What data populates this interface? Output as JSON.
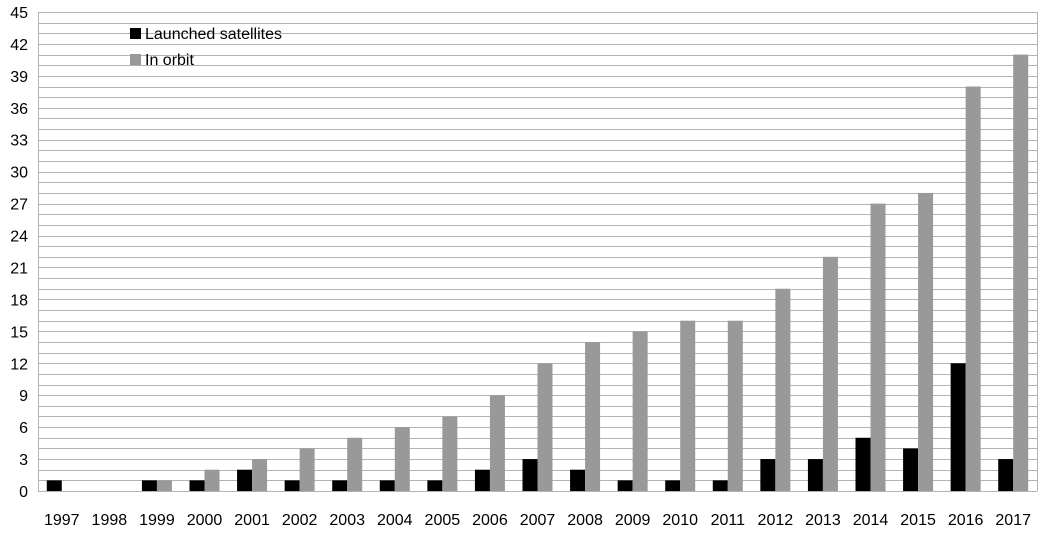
{
  "chart_data": {
    "type": "bar",
    "categories": [
      "1997",
      "1998",
      "1999",
      "2000",
      "2001",
      "2002",
      "2003",
      "2004",
      "2005",
      "2006",
      "2007",
      "2008",
      "2009",
      "2010",
      "2011",
      "2012",
      "2013",
      "2014",
      "2015",
      "2016",
      "2017"
    ],
    "series": [
      {
        "name": "Launched satellites",
        "color": "#000000",
        "values": [
          1,
          0,
          1,
          1,
          2,
          1,
          1,
          1,
          1,
          2,
          3,
          2,
          1,
          1,
          1,
          3,
          3,
          5,
          4,
          12,
          3
        ]
      },
      {
        "name": "In orbit",
        "color": "#999999",
        "values": [
          0,
          0,
          1,
          2,
          3,
          4,
          5,
          6,
          7,
          9,
          12,
          14,
          15,
          16,
          16,
          19,
          22,
          27,
          28,
          38,
          41
        ]
      }
    ],
    "yticks": [
      "0",
      "3",
      "6",
      "9",
      "12",
      "15",
      "18",
      "21",
      "24",
      "27",
      "30",
      "33",
      "36",
      "39",
      "42",
      "45"
    ],
    "ylim": [
      0,
      45
    ],
    "grid": true,
    "legend": "top-left",
    "title": "",
    "xlabel": "",
    "ylabel": ""
  }
}
